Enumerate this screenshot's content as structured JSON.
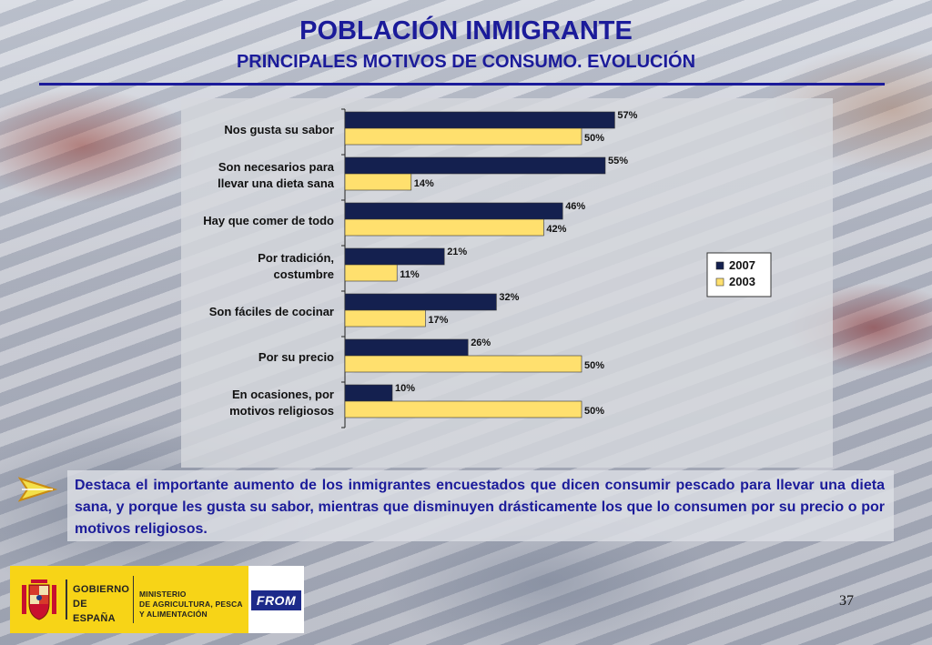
{
  "header": {
    "title": "POBLACIÓN INMIGRANTE",
    "subtitle": "PRINCIPALES MOTIVOS DE CONSUMO. EVOLUCIÓN"
  },
  "chart_data": {
    "type": "bar",
    "orientation": "horizontal",
    "categories": [
      [
        "Nos gusta su sabor"
      ],
      [
        "Son necesarios para",
        "llevar una dieta sana"
      ],
      [
        "Hay que comer de todo"
      ],
      [
        "Por tradición,",
        "costumbre"
      ],
      [
        "Son fáciles de cocinar"
      ],
      [
        "Por su precio"
      ],
      [
        "En ocasiones, por",
        "motivos religiosos"
      ]
    ],
    "series": [
      {
        "name": "2007",
        "values": [
          57,
          55,
          46,
          21,
          32,
          26,
          10
        ],
        "labels": [
          "57%",
          "55%",
          "46%",
          "21%",
          "32%",
          "26%",
          "10%"
        ],
        "color": "#14204f"
      },
      {
        "name": "2003",
        "values": [
          50,
          14,
          42,
          11,
          17,
          50,
          50
        ],
        "labels": [
          "50%",
          "14%",
          "42%",
          "11%",
          "17%",
          "50%",
          "50%"
        ],
        "color": "#ffe06e"
      }
    ],
    "xlim": [
      0,
      100
    ],
    "grid": false,
    "legend_position": "right"
  },
  "note": {
    "text": "Destaca el importante aumento de los inmigrantes encuestados que dicen consumir pescado para llevar una dieta sana, y porque les gusta su sabor, mientras que disminuyen drásticamente los que lo consumen por su precio o por motivos religiosos."
  },
  "footer": {
    "gov_line1": "GOBIERNO",
    "gov_line2": "DE ESPAÑA",
    "ministry_line1": "MINISTERIO",
    "ministry_line2": "DE AGRICULTURA, PESCA",
    "ministry_line3": "Y ALIMENTACIÓN",
    "logo_text": "FROM",
    "page_number": "37"
  },
  "colors": {
    "title": "#1b1b9a",
    "series_2007": "#14204f",
    "series_2003": "#ffe06e",
    "footer_band": "#f7d417"
  },
  "icons": {
    "bullet": "arrow-right-icon",
    "crest": "spanish-coat-of-arms-icon"
  }
}
